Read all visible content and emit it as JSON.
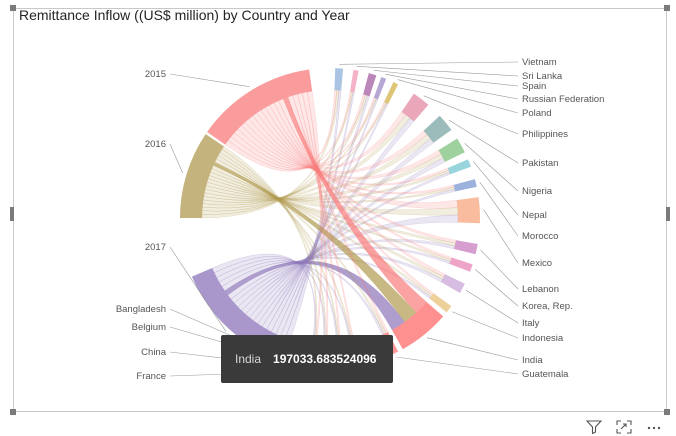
{
  "visual": {
    "title": "Remittance Inflow ((US$ million) by Country and Year"
  },
  "tooltip": {
    "label": "India",
    "value": "197033.683524096"
  },
  "toolbar": {
    "icons": [
      "filter-icon",
      "focus-mode-icon",
      "more-options-icon"
    ]
  },
  "colors": {
    "2015": "#f97b7b",
    "2016": "#b09a50",
    "2017": "#8c73b8",
    "Bangladesh": "#e86ab0",
    "Belgium": "#c87ab6",
    "China": "#f7a3a8",
    "France": "#d7c7a6",
    "Guatemala": "#ff7474",
    "India": "#ff6b6b",
    "Indonesia": "#e8c07a",
    "Italy": "#c9a7d8",
    "Korea, Rep.": "#e886b6",
    "Lebanon": "#c77dbd",
    "Mexico": "#f7a57e",
    "Morocco": "#7b97d0",
    "Nepal": "#74c5d0",
    "Nigeria": "#7fc27f",
    "Pakistan": "#7aa6a3",
    "Philippines": "#e28aa2",
    "Poland": "#d3b24b",
    "Russian Federation": "#9f8ac6",
    "Spain": "#a45ea3",
    "Sri Lanka": "#f09ab4",
    "Vietnam": "#8fb0da"
  },
  "chart_data": {
    "type": "chord",
    "title": "Remittance Inflow ((US$ million) by Country and Year",
    "years": [
      "2015",
      "2016",
      "2017"
    ],
    "countries": [
      "Vietnam",
      "Sri Lanka",
      "Spain",
      "Russian Federation",
      "Poland",
      "Philippines",
      "Pakistan",
      "Nigeria",
      "Nepal",
      "Morocco",
      "Mexico",
      "Lebanon",
      "Korea, Rep.",
      "Italy",
      "Indonesia",
      "India",
      "Guatemala",
      "France",
      "China",
      "Belgium",
      "Bangladesh"
    ],
    "highlighted": {
      "country": "India",
      "value": 197033.683524096
    }
  }
}
